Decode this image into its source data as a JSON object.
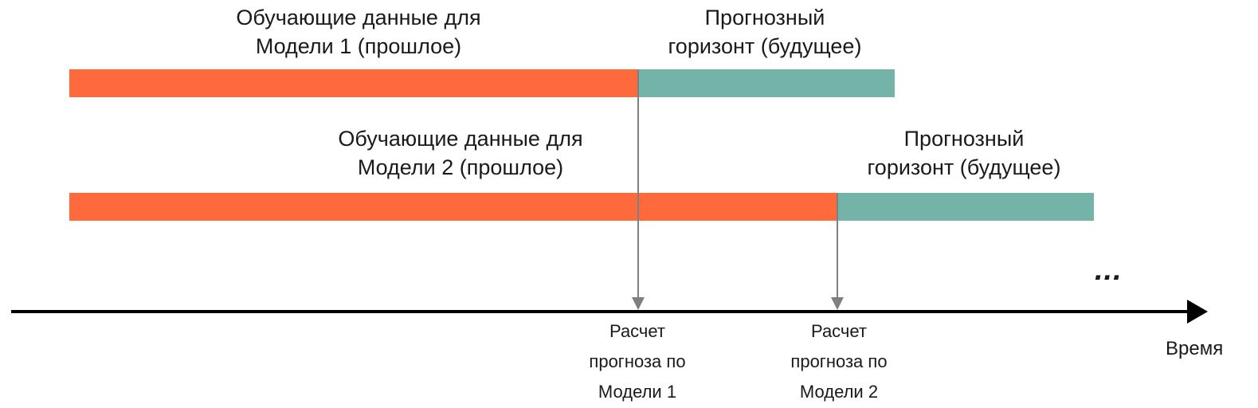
{
  "model1": {
    "train_label": "Обучающие данные для\nМодели 1 (прошлое)",
    "forecast_label": "Прогнозный\nгоризонт (будущее)"
  },
  "model2": {
    "train_label": "Обучающие данные для\nМодели 2 (прошлое)",
    "forecast_label": "Прогнозный\nгоризонт (будущее)"
  },
  "calc1_label": "Расчет\nпрогноза по\nМодели 1",
  "calc2_label": "Расчет\nпрогноза по\nМодели 2",
  "ellipsis": "...",
  "axis_label": "Время",
  "colors": {
    "train": "#ff6a3d",
    "forecast": "#74b3a8",
    "pointer": "#7f7f7f",
    "axis": "#000000"
  }
}
